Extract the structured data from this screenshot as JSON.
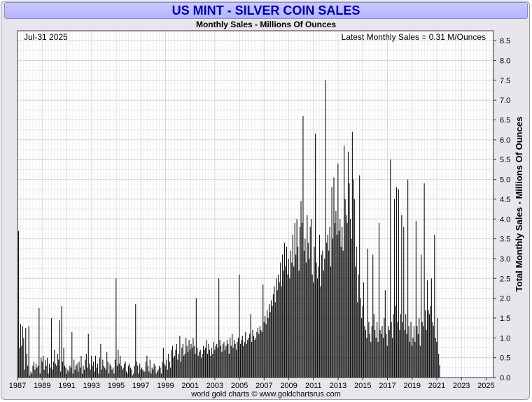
{
  "header": {
    "title": "US MINT - SILVER COIN SALES",
    "subtitle": "Monthly Sales - Millions Of Ounces"
  },
  "footer": {
    "credit": "world gold charts © www.goldchartsrus.com"
  },
  "chart_data": {
    "type": "bar",
    "title": "US MINT - SILVER COIN SALES",
    "subtitle": "Monthly Sales - Millions Of Ounces",
    "date_label": "Jul-31  2025",
    "latest_label": "Latest Monthly Sales = 0.31 M/Ounces",
    "ylabel": "Total Monthly Sales - Millions Of Ounces",
    "xlabel": "",
    "ylim": [
      0,
      8.75
    ],
    "yticks": [
      "0.0",
      "0.5",
      "1.0",
      "1.5",
      "2.0",
      "2.5",
      "3.0",
      "3.5",
      "4.0",
      "4.5",
      "5.0",
      "5.5",
      "6.0",
      "6.5",
      "7.0",
      "7.5",
      "8.0",
      "8.5"
    ],
    "xlim": [
      1987.0,
      2025.6
    ],
    "xticks": [
      "1987",
      "1989",
      "1991",
      "1993",
      "1995",
      "1997",
      "1999",
      "2001",
      "2003",
      "2005",
      "2007",
      "2009",
      "2011",
      "2013",
      "2015",
      "2017",
      "2019",
      "2021",
      "2023",
      "2025"
    ],
    "x_start": 1987.0,
    "step": 0.0833,
    "values": [
      1.4,
      3.7,
      0.75,
      1.35,
      0.8,
      1.3,
      1.0,
      0.2,
      1.25,
      0.6,
      0.3,
      1.3,
      0.05,
      0.15,
      0.1,
      0.3,
      0.4,
      0.2,
      0.35,
      0.25,
      0.3,
      1.75,
      0.1,
      0.5,
      0.4,
      0.55,
      0.2,
      0.45,
      0.3,
      0.5,
      0.1,
      0.35,
      0.25,
      1.5,
      0.2,
      0.4,
      0.7,
      0.35,
      0.3,
      0.6,
      0.45,
      1.45,
      0.15,
      1.8,
      0.4,
      0.75,
      0.3,
      0.25,
      0.1,
      0.2,
      0.15,
      0.3,
      0.25,
      1.15,
      0.1,
      0.45,
      0.2,
      0.3,
      0.35,
      0.15,
      0.4,
      0.25,
      0.55,
      0.1,
      0.3,
      0.2,
      0.45,
      0.6,
      0.25,
      1.1,
      0.35,
      0.2,
      0.55,
      0.3,
      0.4,
      0.15,
      0.55,
      0.25,
      0.35,
      0.1,
      0.5,
      0.85,
      0.2,
      0.45,
      0.3,
      0.25,
      0.2,
      0.65,
      0.4,
      0.1,
      0.35,
      0.3,
      0.2,
      0.25,
      0.1,
      0.45,
      2.5,
      0.3,
      0.7,
      0.35,
      0.55,
      0.3,
      0.2,
      0.25,
      0.35,
      0.4,
      0.15,
      0.1,
      0.3,
      0.35,
      0.25,
      0.2,
      0.05,
      0.1,
      0.3,
      1.85,
      0.4,
      0.3,
      0.1,
      0.35,
      0.2,
      0.25,
      0.2,
      0.15,
      0.15,
      0.4,
      0.55,
      0.3,
      0.15,
      0.45,
      0.1,
      0.25,
      0.2,
      0.35,
      0.3,
      0.1,
      0.15,
      0.2,
      0.3,
      0.25,
      0.1,
      0.4,
      0.75,
      0.35,
      0.3,
      0.45,
      0.2,
      0.6,
      0.4,
      0.25,
      0.7,
      0.8,
      0.5,
      0.55,
      0.7,
      0.85,
      0.45,
      0.6,
      1.05,
      0.4,
      0.75,
      0.85,
      0.55,
      0.6,
      1.0,
      0.8,
      0.65,
      0.95,
      0.7,
      0.85,
      0.75,
      1.0,
      0.8,
      0.6,
      2.0,
      0.75,
      0.55,
      0.65,
      0.7,
      0.5,
      0.6,
      0.8,
      0.7,
      0.75,
      0.95,
      0.6,
      0.85,
      0.7,
      0.55,
      0.75,
      0.6,
      0.9,
      0.7,
      0.8,
      0.85,
      0.75,
      2.5,
      0.95,
      0.8,
      0.65,
      0.85,
      0.9,
      0.7,
      0.8,
      0.95,
      0.85,
      0.6,
      1.0,
      0.8,
      1.1,
      0.75,
      0.95,
      0.85,
      0.7,
      0.9,
      1.0,
      2.6,
      0.85,
      0.95,
      1.05,
      0.8,
      0.9,
      1.15,
      0.85,
      0.95,
      1.0,
      1.1,
      1.6,
      0.9,
      1.2,
      1.05,
      0.95,
      1.0,
      1.15,
      1.25,
      1.1,
      1.3,
      1.2,
      1.15,
      2.35,
      1.4,
      1.55,
      1.35,
      1.7,
      1.5,
      1.85,
      1.65,
      1.95,
      1.8,
      2.1,
      2.3,
      1.9,
      2.5,
      2.2,
      2.6,
      2.4,
      2.9,
      2.3,
      3.1,
      2.7,
      3.4,
      2.8,
      3.3,
      2.6,
      3.0,
      2.5,
      3.2,
      2.9,
      3.6,
      2.8,
      3.9,
      3.1,
      4.0,
      3.3,
      2.7,
      3.8,
      4.45,
      3.9,
      6.6,
      3.2,
      3.5,
      2.9,
      4.1,
      3.4,
      3.0,
      3.8,
      4.0,
      2.6,
      2.4,
      3.3,
      6.15,
      2.9,
      2.5,
      2.8,
      3.6,
      2.3,
      3.1,
      3.2,
      2.7,
      3.0,
      7.5,
      3.4,
      3.6,
      3.2,
      3.8,
      2.8,
      4.8,
      3.5,
      5.05,
      3.9,
      4.2,
      3.6,
      5.4,
      3.7,
      4.0,
      3.3,
      3.8,
      3.2,
      5.85,
      4.5,
      4.1,
      3.9,
      5.7,
      4.9,
      4.0,
      3.5,
      6.2,
      5.0,
      4.5,
      2.8,
      3.3,
      1.9,
      2.6,
      5.1,
      2.0,
      1.5,
      1.8,
      2.4,
      1.3,
      1.2,
      1.0,
      3.25,
      1.4,
      1.1,
      0.9,
      1.3,
      3.1,
      1.6,
      1.2,
      1.0,
      1.4,
      0.9,
      3.9,
      1.2,
      1.1,
      1.3,
      1.0,
      1.5,
      2.2,
      1.1,
      0.8,
      1.3,
      1.2,
      5.5,
      1.4,
      1.0,
      1.6,
      4.5,
      1.8,
      4.8,
      1.4,
      4.75,
      1.2,
      1.6,
      4.1,
      1.4,
      3.8,
      1.2,
      1.6,
      1.1,
      5.0,
      1.3,
      0.9,
      1.4,
      0.8,
      1.0,
      1.3,
      0.9,
      3.95,
      1.3,
      1.1,
      1.5,
      0.8,
      3.1,
      1.4,
      1.3,
      4.9,
      1.7,
      1.2,
      2.45,
      1.7,
      1.6,
      1.8,
      2.5,
      1.4,
      1.3,
      3.6,
      1.0,
      0.9,
      1.5,
      0.6,
      0.31
    ]
  }
}
